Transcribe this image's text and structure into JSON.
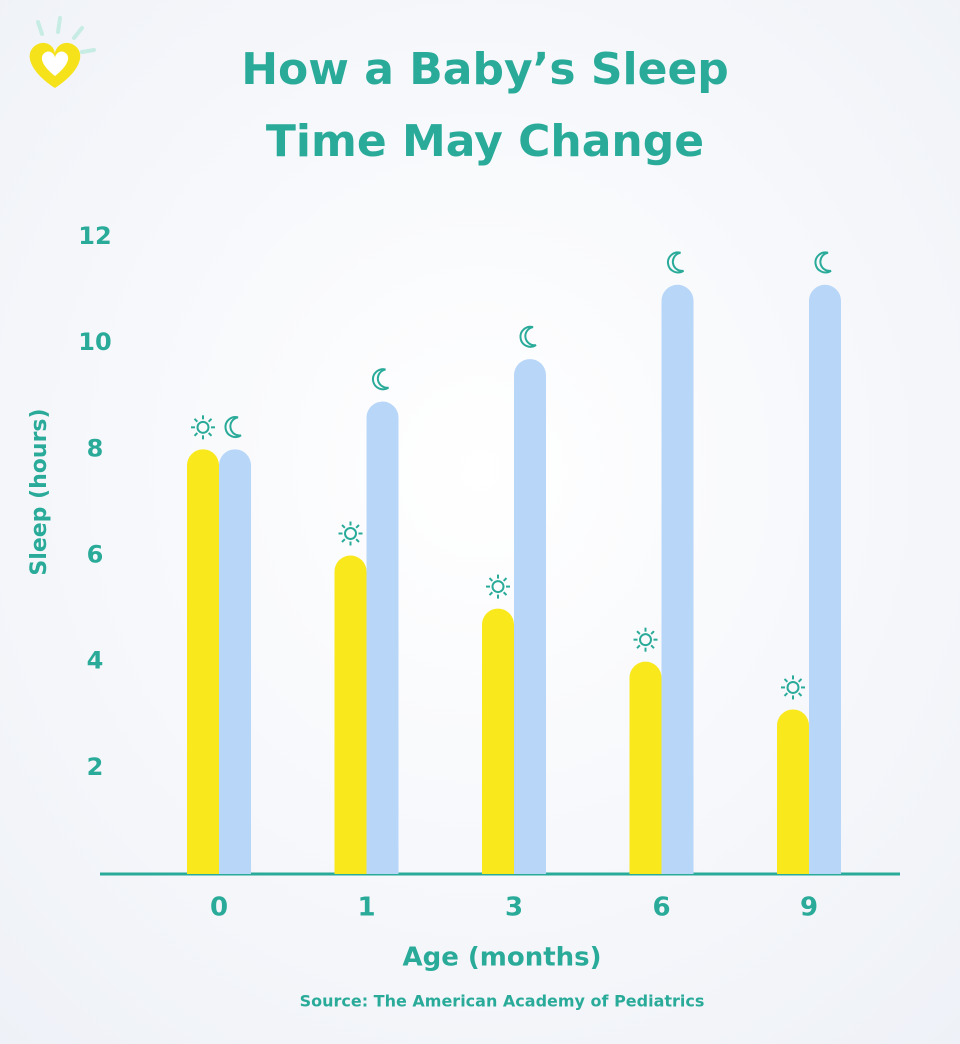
{
  "chart_data": {
    "type": "bar",
    "title": [
      "How a Baby’s Sleep",
      "Time May Change"
    ],
    "x_label": "Age (months)",
    "y_label": "Sleep (hours)",
    "source": "Source: The American Academy of Pediatrics",
    "categories": [
      "0",
      "1",
      "3",
      "6",
      "9"
    ],
    "series": [
      {
        "color": "#f9e81c",
        "values": [
          8,
          6,
          5,
          4,
          3.1
        ]
      },
      {
        "color": "#b8d6f8",
        "values": [
          8,
          8.9,
          9.7,
          11.1,
          11.1
        ]
      }
    ],
    "ylim": [
      0,
      12
    ],
    "yticks": [
      2,
      4,
      6,
      8,
      10,
      12
    ],
    "grid": true
  }
}
